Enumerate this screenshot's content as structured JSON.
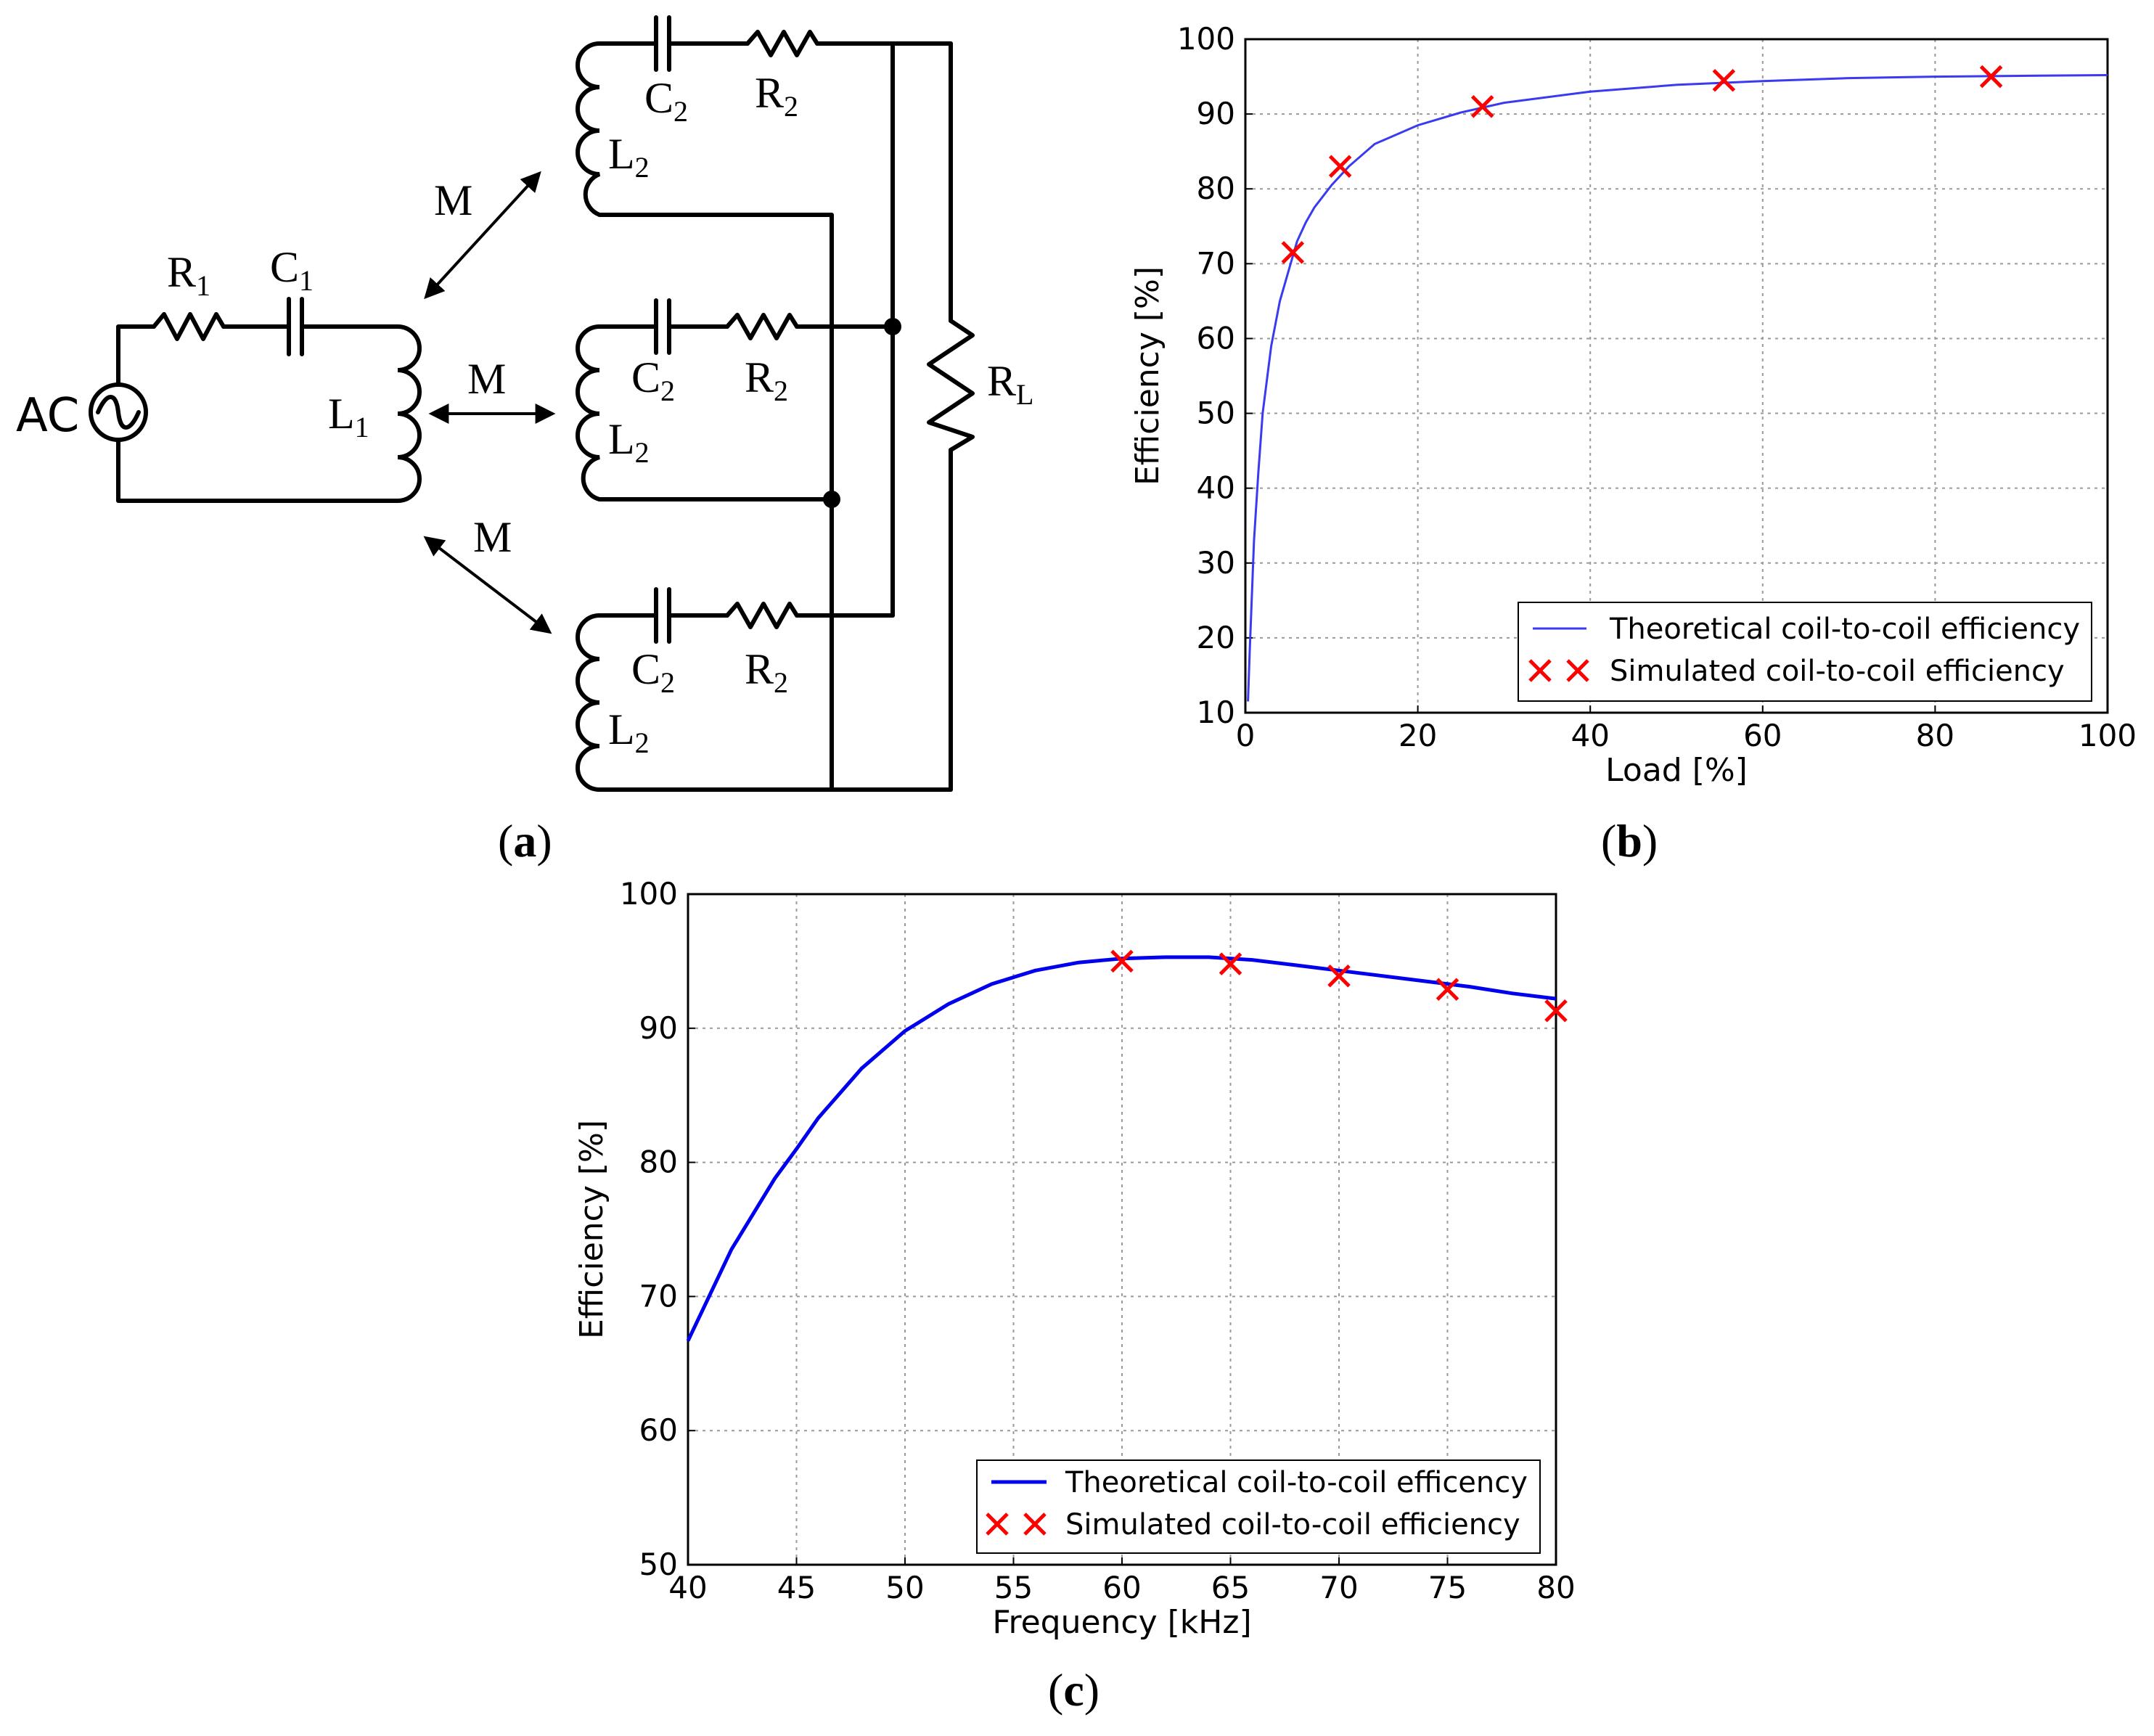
{
  "panels": {
    "a": {
      "label": "a",
      "circuit": {
        "source_label": "AC",
        "R1": {
          "main": "R",
          "sub": "1"
        },
        "C1": {
          "main": "C",
          "sub": "1"
        },
        "L1": {
          "main": "L",
          "sub": "1"
        },
        "C2": {
          "main": "C",
          "sub": "2"
        },
        "R2": {
          "main": "R",
          "sub": "2"
        },
        "L2": {
          "main": "L",
          "sub": "2"
        },
        "RL": {
          "main": "R",
          "sub": "L"
        },
        "mutual": "M"
      }
    },
    "b": {
      "label": "b"
    },
    "c": {
      "label": "c"
    }
  },
  "chart_data": [
    {
      "id": "b",
      "type": "line",
      "xlabel": "Load [%]",
      "ylabel": "Efficiency [%]",
      "xlim": [
        0,
        100
      ],
      "ylim": [
        10,
        100
      ],
      "xticks": [
        0,
        20,
        40,
        60,
        80,
        100
      ],
      "yticks": [
        10,
        20,
        30,
        40,
        50,
        60,
        70,
        80,
        90,
        100
      ],
      "grid": true,
      "legend_position": "lower right",
      "series": [
        {
          "name": "Theoretical coil-to-coil efficiency",
          "kind": "line",
          "color": "#3a3af0",
          "x": [
            0.3,
            0.5,
            1,
            1.5,
            2,
            3,
            4,
            5,
            6,
            7,
            8,
            10,
            12,
            15,
            20,
            25,
            30,
            40,
            50,
            60,
            70,
            80,
            90,
            100
          ],
          "y": [
            11.5,
            18,
            33,
            42,
            50,
            59,
            65,
            69,
            73,
            75.5,
            77.5,
            80.5,
            83,
            86,
            88.5,
            90.2,
            91.5,
            93,
            93.9,
            94.4,
            94.8,
            95,
            95.1,
            95.2
          ]
        },
        {
          "name": "Simulated coil-to-coil efficiency",
          "kind": "scatter",
          "marker": "x",
          "color": "#ff0000",
          "x": [
            5.5,
            11,
            27.5,
            55.5,
            86.5
          ],
          "y": [
            71.5,
            83,
            91,
            94.5,
            95
          ]
        }
      ]
    },
    {
      "id": "c",
      "type": "line",
      "xlabel": "Frequency [kHz]",
      "ylabel": "Efficiency [%]",
      "xlim": [
        40,
        80
      ],
      "ylim": [
        50,
        100
      ],
      "xticks": [
        40,
        45,
        50,
        55,
        60,
        65,
        70,
        75,
        80
      ],
      "yticks": [
        50,
        60,
        70,
        80,
        90,
        100
      ],
      "grid": true,
      "legend_position": "lower right",
      "series": [
        {
          "name": "Theoretical coil-to-coil efficency",
          "kind": "line",
          "color": "#0000ee",
          "x": [
            40,
            42,
            44,
            45,
            46,
            48,
            50,
            52,
            54,
            56,
            58,
            60,
            62,
            64,
            66,
            68,
            70,
            72,
            74,
            76,
            78,
            80
          ],
          "y": [
            66.7,
            73.5,
            78.8,
            81,
            83.3,
            87,
            89.8,
            91.8,
            93.3,
            94.3,
            94.9,
            95.2,
            95.3,
            95.3,
            95.1,
            94.7,
            94.3,
            93.9,
            93.5,
            93.1,
            92.6,
            92.2
          ]
        },
        {
          "name": "Simulated coil-to-coil efficiency",
          "kind": "scatter",
          "marker": "x",
          "color": "#ff0000",
          "x": [
            60,
            65,
            70,
            75,
            80
          ],
          "y": [
            95,
            94.8,
            93.9,
            92.9,
            91.3
          ]
        }
      ]
    }
  ]
}
